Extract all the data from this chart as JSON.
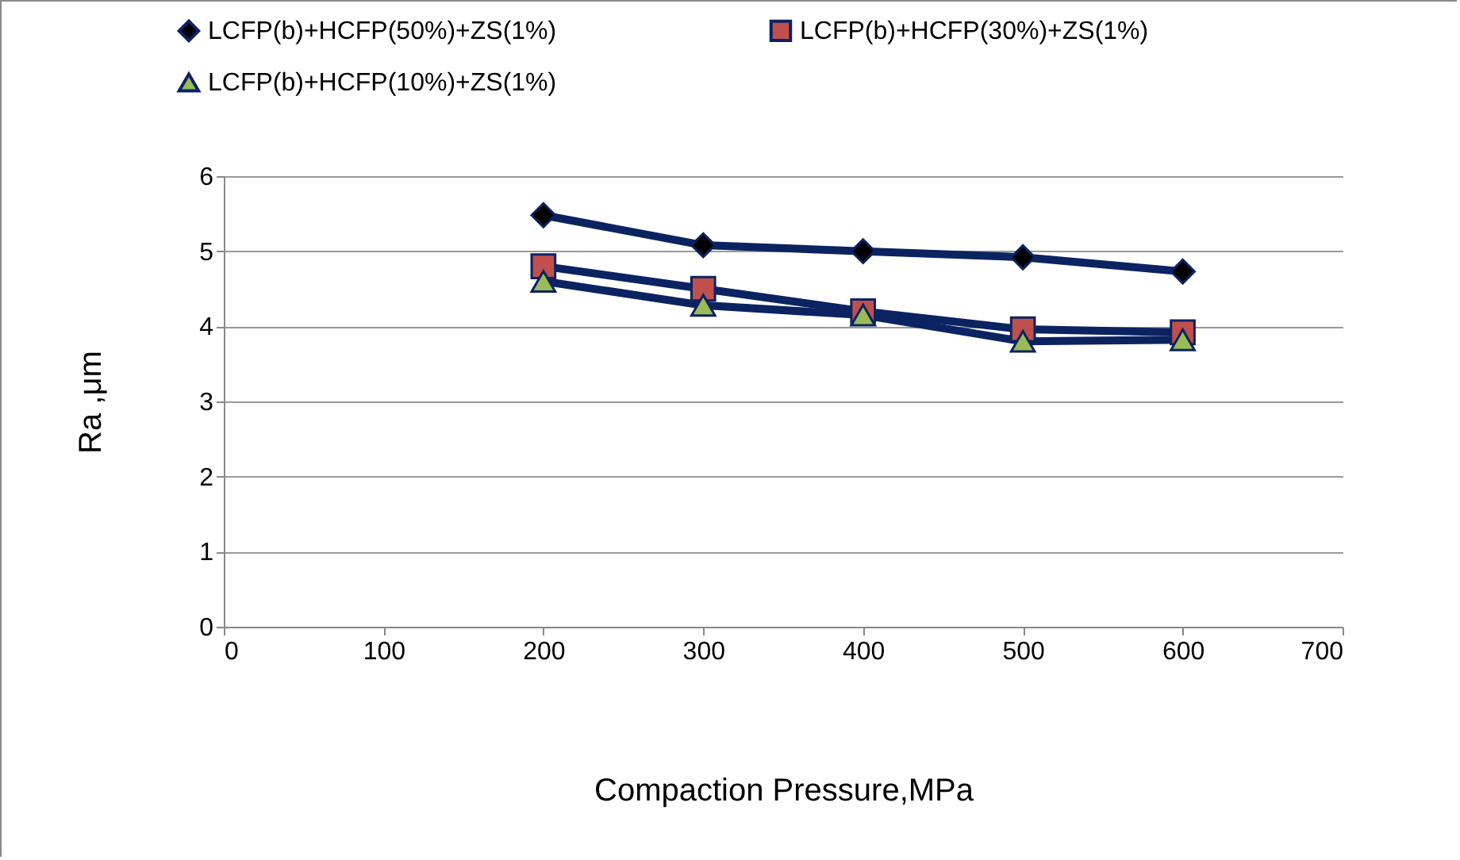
{
  "chart_data": {
    "type": "line",
    "xlabel": "Compaction Pressure,MPa",
    "ylabel": "Ra ,μm",
    "x": [
      200,
      300,
      400,
      500,
      600
    ],
    "series": [
      {
        "name": "LCFP(b)+HCFP(50%)+ZS(1%)",
        "color": "#0b2361",
        "colors": [
          "#000000",
          "#000000",
          "#000000",
          "#000000",
          "#000000"
        ],
        "marker": "diamond",
        "values": [
          5.48,
          5.08,
          5.0,
          4.92,
          4.73
        ]
      },
      {
        "name": "LCFP(b)+HCFP(30%)+ZS(1%)",
        "color": "#0b2361",
        "colors": [
          "#c0504d",
          "#c0504d",
          "#c0504d",
          "#c0504d",
          "#c0504d"
        ],
        "marker": "square",
        "values": [
          4.8,
          4.5,
          4.2,
          3.96,
          3.92
        ]
      },
      {
        "name": "LCFP(b)+HCFP(10%)+ZS(1%)",
        "color": "#0b2361",
        "colors": [
          "#9bbb59",
          "#9bbb59",
          "#9bbb59",
          "#9bbb59",
          "#9bbb59"
        ],
        "marker": "triangle",
        "values": [
          4.6,
          4.28,
          4.15,
          3.8,
          3.82
        ]
      }
    ],
    "xlim": [
      0,
      700
    ],
    "xticks": [
      0,
      100,
      200,
      300,
      400,
      500,
      600,
      700
    ],
    "ylim": [
      0,
      6
    ],
    "yticks": [
      0,
      1,
      2,
      3,
      4,
      5,
      6
    ],
    "grid": "y",
    "legend": "top",
    "line_style": "solid"
  }
}
